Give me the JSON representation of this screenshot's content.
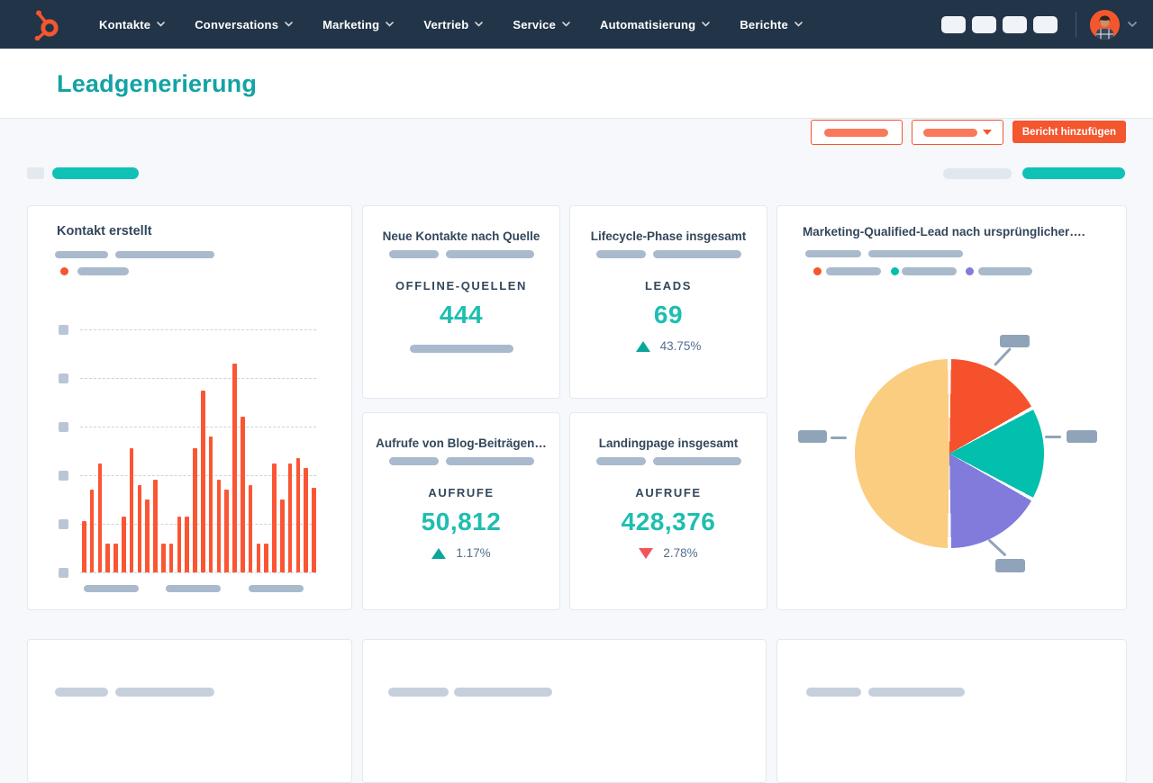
{
  "colors": {
    "nav_bg": "#223448",
    "brand_orange": "#F4562E",
    "title_teal": "#14A2A5",
    "kpi_teal": "#1EBEB0",
    "navy_text": "#33475B",
    "delta_text": "#516F90",
    "delta_up_teal": "#0AA69C",
    "delta_down_red": "#F2545B",
    "placeholder_gray": "#A9BACC",
    "page_bg": "#F6F8FB"
  },
  "nav": {
    "items": [
      {
        "label": "Kontakte"
      },
      {
        "label": "Conversations"
      },
      {
        "label": "Marketing"
      },
      {
        "label": "Vertrieb"
      },
      {
        "label": "Service"
      },
      {
        "label": "Automatisierung"
      },
      {
        "label": "Berichte"
      }
    ]
  },
  "header": {
    "title": "Leadgenerierung",
    "add_report_label": "Bericht hinzufügen"
  },
  "cards": {
    "bar_card": {
      "title": "Kontakt erstellt"
    },
    "pie_card": {
      "title": "Marketing-Qualified-Lead nach ursprünglicher…."
    },
    "kpis": [
      {
        "title": "Neue Kontakte nach Quelle",
        "metric_label": "OFFLINE-QUELLEN",
        "value": "444"
      },
      {
        "title": "Lifecycle-Phase insgesamt",
        "metric_label": "LEADS",
        "value": "69",
        "delta": "43.75%",
        "delta_dir": "up"
      },
      {
        "title": "Aufrufe von Blog-Beiträgen…",
        "metric_label": "AUFRUFE",
        "value": "50,812",
        "delta": "1.17%",
        "delta_dir": "up"
      },
      {
        "title": "Landingpage insgesamt",
        "metric_label": "AUFRUFE",
        "value": "428,376",
        "delta": "2.78%",
        "delta_dir": "down"
      }
    ]
  },
  "chart_data": [
    {
      "type": "bar",
      "title": "Kontakt erstellt",
      "xlabel": "",
      "ylabel": "",
      "labels_redacted": true,
      "values": [
        21,
        34,
        45,
        12,
        12,
        23,
        51,
        36,
        30,
        38,
        12,
        12,
        23,
        23,
        51,
        75,
        56,
        38,
        34,
        86,
        64,
        36,
        12,
        12,
        45,
        30,
        45,
        47,
        43,
        35
      ],
      "ylim": [
        0,
        100
      ],
      "gridlines": 6,
      "grid": true,
      "bar_color": "#FA5634",
      "legend_position": "top"
    },
    {
      "type": "pie",
      "title": "Marketing-Qualified-Lead nach ursprünglicher….",
      "labels_redacted": true,
      "slices": [
        {
          "label": "",
          "value": 17,
          "color": "#F4512C"
        },
        {
          "label": "",
          "value": 16,
          "color": "#02BFAE"
        },
        {
          "label": "",
          "value": 17,
          "color": "#817BDC"
        },
        {
          "label": "",
          "value": 50,
          "color": "#FBCD80"
        }
      ],
      "start_angle_deg": 0,
      "legend_position": "top"
    }
  ]
}
